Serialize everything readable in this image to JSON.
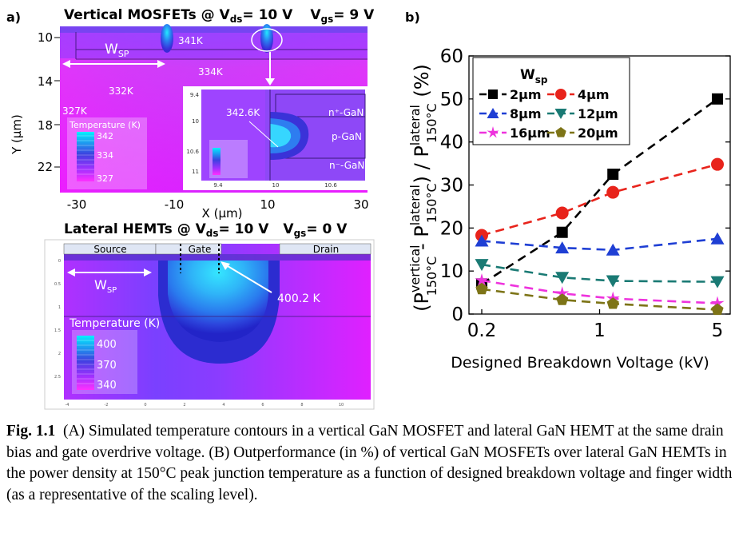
{
  "panel_a": {
    "label": "a)",
    "top_title": "Vertical MOSFETs @ V",
    "top_title_sub1": "ds",
    "top_title_mid": "= 10 V",
    "top_title_v2": "V",
    "top_title_sub2": "gs",
    "top_title_end": "= 9 V",
    "y_axis_label": "Y (μm)",
    "y_ticks": [
      "10",
      "14",
      "18",
      "22"
    ],
    "x_ticks": [
      "-30",
      "-10",
      "10",
      "30"
    ],
    "x_axis_label": "X (μm)",
    "wsp_label": "W",
    "wsp_sub": "SP",
    "temp_341": "341K",
    "temp_334": "334K",
    "temp_332": "332K",
    "temp_327": "327K",
    "legend_title": "Temperature (K)",
    "legend_values": [
      "342",
      "334",
      "327"
    ],
    "inset_temp": "342.6K",
    "inset_layers": [
      "n⁺-GaN",
      "p-GaN",
      "n⁻-GaN"
    ],
    "inset_y_ticks": [
      "9.4",
      "10",
      "10.6",
      "11"
    ],
    "inset_x_ticks": [
      "9.4",
      "10",
      "10.6"
    ],
    "bottom_title": "Lateral HEMTs @ V",
    "bottom_title_sub1": "ds",
    "bottom_title_mid": "= 10 V",
    "bottom_title_v2": "V",
    "bottom_title_sub2": "gs",
    "bottom_title_end": "= 0 V",
    "hemt_source": "Source",
    "hemt_gate": "Gate",
    "hemt_drain": "Drain",
    "hemt_wsp": "W",
    "hemt_wsp_sub": "SP",
    "hemt_peak": "400.2 K",
    "hemt_legend_title": "Temperature (K)",
    "hemt_legend_values": [
      "400",
      "370",
      "340"
    ],
    "hemt_y_ticks": [
      "0",
      "0.5",
      "1",
      "1.5",
      "2",
      "2.5"
    ],
    "hemt_x_ticks": [
      "-4",
      "-2",
      "0",
      "2",
      "4",
      "6",
      "8",
      "10"
    ]
  },
  "chart_data": {
    "label": "b)",
    "type": "line",
    "xscale": "log",
    "x": [
      0.2,
      0.6,
      1.2,
      5
    ],
    "xticks": [
      "0.2",
      "1",
      "5"
    ],
    "xlabel": "Designed Breakdown Voltage (kV)",
    "ylabel": "(P^vertical_150°C - P^lateral_150°C) / P^lateral_150°C (%)",
    "ylabel_parts": {
      "open": "(P",
      "sup1": "vertical",
      "sub1": "150°C",
      "minus": " - P",
      "sup2": "lateral",
      "sub2": "150°C",
      "div": ") / P",
      "sup3": "lateral",
      "sub3": "150°C",
      "tail": " (%)"
    },
    "ylim": [
      0,
      60
    ],
    "yticks": [
      "0",
      "10",
      "20",
      "30",
      "40",
      "50",
      "60"
    ],
    "legend_title": "W",
    "legend_title_sub": "sp",
    "series": [
      {
        "name": "2μm",
        "color": "#000000",
        "marker": "square",
        "values": [
          7,
          19,
          32.5,
          50
        ]
      },
      {
        "name": "4μm",
        "color": "#e8231b",
        "marker": "circle",
        "values": [
          18.3,
          23.5,
          28.3,
          34.8
        ]
      },
      {
        "name": "8μm",
        "color": "#1f3fd4",
        "marker": "triangle-up",
        "values": [
          17,
          15.4,
          14.9,
          17.5
        ]
      },
      {
        "name": "12μm",
        "color": "#1a7a74",
        "marker": "triangle-down",
        "values": [
          11.5,
          8.5,
          7.7,
          7.5
        ]
      },
      {
        "name": "16μm",
        "color": "#ee33dd",
        "marker": "star",
        "values": [
          7.8,
          4.8,
          3.6,
          2.5
        ]
      },
      {
        "name": "20μm",
        "color": "#7d7417",
        "marker": "pentagon",
        "values": [
          5.8,
          3.3,
          2.4,
          1
        ]
      }
    ]
  },
  "caption": {
    "label": "Fig. 1.1",
    "text": "(A) Simulated temperature contours in a vertical GaN MOSFET and lateral GaN HEMT at the same drain bias and gate overdrive voltage. (B) Outperformance (in %) of vertical GaN MOSFETs over lateral GaN HEMTs in the power density at 150°C peak junction temperature as a function of designed breakdown voltage and finger width (as a representative of the scaling level)."
  },
  "colors": {
    "magenta": "#e619ff",
    "purple": "#9f40ff",
    "blue": "#1f3fd4",
    "cyan": "#00e6ff"
  }
}
